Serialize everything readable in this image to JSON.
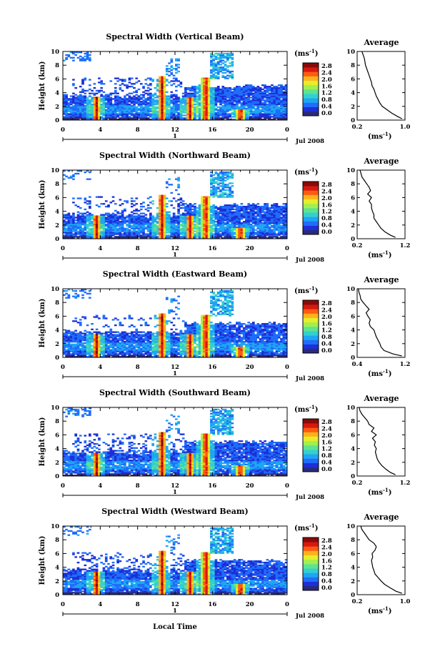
{
  "figure": {
    "xlabel": "Local Time",
    "date_label": "Jul 2008",
    "day_label": "1",
    "colorbar_unit": "(ms",
    "colorbar_unit_exp": "-1",
    "colorbar_unit_close": ")",
    "colorbar_ticks": [
      "0.0",
      "0.4",
      "0.8",
      "1.2",
      "1.6",
      "2.0",
      "2.4",
      "2.8"
    ],
    "colorbar_colors": [
      "#2a2a7a",
      "#1d2fd6",
      "#1f6dfa",
      "#1ea6f2",
      "#33d0cf",
      "#5fe38f",
      "#a3ef4e",
      "#e6ee2c",
      "#ffb21a",
      "#ff5a12",
      "#d41a10",
      "#8a0a08"
    ],
    "average_title": "Average",
    "average_unit": "(ms",
    "average_unit_exp": "-1",
    "average_unit_close": ")"
  },
  "chart_data": [
    {
      "type": "heatmap",
      "title": "Spectral Width (Vertical Beam)",
      "ylabel": "Height (km)",
      "xlim": [
        0,
        24
      ],
      "ylim": [
        0,
        10
      ],
      "x_ticks": [
        "0",
        "4",
        "8",
        "12",
        "16",
        "20",
        "0"
      ],
      "y_ticks": [
        "0",
        "2",
        "4",
        "6",
        "8",
        "10"
      ],
      "average": {
        "type": "line",
        "xlim": [
          0.2,
          1.0
        ],
        "ylim": [
          0,
          10
        ],
        "x_ticks": [
          "0.2",
          "1.0"
        ],
        "y_ticks": [
          "0",
          "2",
          "4",
          "6",
          "8",
          "10"
        ],
        "heights": [
          0.2,
          0.5,
          1,
          1.5,
          2,
          2.5,
          3,
          3.5,
          4,
          4.5,
          5,
          5.5,
          6,
          6.5,
          7,
          7.5,
          8,
          8.5,
          9,
          9.5,
          10
        ],
        "values": [
          0.95,
          0.88,
          0.78,
          0.7,
          0.62,
          0.58,
          0.55,
          0.52,
          0.5,
          0.48,
          0.45,
          0.44,
          0.42,
          0.4,
          0.38,
          0.36,
          0.34,
          0.33,
          0.32,
          0.3,
          0.28
        ]
      }
    },
    {
      "type": "heatmap",
      "title": "Spectral Width (Northward Beam)",
      "ylabel": "Height (km)",
      "xlim": [
        0,
        24
      ],
      "ylim": [
        0,
        10
      ],
      "x_ticks": [
        "0",
        "4",
        "8",
        "12",
        "16",
        "20",
        "0"
      ],
      "y_ticks": [
        "0",
        "2",
        "4",
        "6",
        "8",
        "10"
      ],
      "average": {
        "type": "line",
        "xlim": [
          0.2,
          1.2
        ],
        "ylim": [
          0,
          10
        ],
        "x_ticks": [
          "0.2",
          "1.2"
        ],
        "y_ticks": [
          "0",
          "2",
          "4",
          "6",
          "8",
          "10"
        ],
        "heights": [
          0.2,
          0.5,
          1,
          1.5,
          2,
          2.5,
          3,
          3.5,
          4,
          4.5,
          5,
          5.5,
          6,
          6.5,
          7,
          7.5,
          8,
          8.5,
          9,
          9.5,
          10
        ],
        "values": [
          1.0,
          0.9,
          0.78,
          0.7,
          0.65,
          0.6,
          0.55,
          0.55,
          0.52,
          0.5,
          0.5,
          0.45,
          0.5,
          0.42,
          0.48,
          0.45,
          0.4,
          0.35,
          0.3,
          0.28,
          0.26
        ]
      }
    },
    {
      "type": "heatmap",
      "title": "Spectral Width (Eastward Beam)",
      "ylabel": "Height (km)",
      "xlim": [
        0,
        24
      ],
      "ylim": [
        0,
        10
      ],
      "x_ticks": [
        "0",
        "4",
        "8",
        "12",
        "16",
        "20",
        "0"
      ],
      "y_ticks": [
        "0",
        "2",
        "4",
        "6",
        "8",
        "10"
      ],
      "average": {
        "type": "line",
        "xlim": [
          0.4,
          1.2
        ],
        "ylim": [
          0,
          10
        ],
        "x_ticks": [
          "0.4",
          "1.2"
        ],
        "y_ticks": [
          "0",
          "2",
          "4",
          "6",
          "8",
          "10"
        ],
        "heights": [
          0.2,
          0.5,
          1,
          1.5,
          2,
          2.5,
          3,
          3.5,
          4,
          4.5,
          5,
          5.5,
          6,
          6.5,
          7,
          7.5,
          8,
          8.5,
          9,
          9.5,
          10
        ],
        "values": [
          1.15,
          1.0,
          0.85,
          0.8,
          0.78,
          0.75,
          0.72,
          0.7,
          0.68,
          0.62,
          0.6,
          0.62,
          0.58,
          0.55,
          0.6,
          0.55,
          0.5,
          0.46,
          0.45,
          0.43,
          0.42
        ]
      }
    },
    {
      "type": "heatmap",
      "title": "Spectral Width (Southward Beam)",
      "ylabel": "Height (km)",
      "xlim": [
        0,
        24
      ],
      "ylim": [
        0,
        10
      ],
      "x_ticks": [
        "0",
        "4",
        "8",
        "12",
        "16",
        "20",
        "0"
      ],
      "y_ticks": [
        "0",
        "2",
        "4",
        "6",
        "8",
        "10"
      ],
      "average": {
        "type": "line",
        "xlim": [
          0.2,
          1.2
        ],
        "ylim": [
          0,
          10
        ],
        "x_ticks": [
          "0.2",
          "1.2"
        ],
        "y_ticks": [
          "0",
          "2",
          "4",
          "6",
          "8",
          "10"
        ],
        "heights": [
          0.2,
          0.5,
          1,
          1.5,
          2,
          2.5,
          3,
          3.5,
          4,
          4.5,
          5,
          5.5,
          6,
          6.5,
          7,
          7.5,
          8,
          8.5,
          9,
          9.5,
          10
        ],
        "values": [
          1.0,
          0.9,
          0.8,
          0.72,
          0.66,
          0.62,
          0.6,
          0.58,
          0.6,
          0.56,
          0.58,
          0.52,
          0.6,
          0.5,
          0.55,
          0.45,
          0.42,
          0.36,
          0.3,
          0.26,
          0.24
        ]
      }
    },
    {
      "type": "heatmap",
      "title": "Spectral Width (Westward Beam)",
      "ylabel": "Height (km)",
      "xlim": [
        0,
        24
      ],
      "ylim": [
        0,
        10
      ],
      "x_ticks": [
        "0",
        "4",
        "8",
        "12",
        "16",
        "20",
        "0"
      ],
      "y_ticks": [
        "0",
        "2",
        "4",
        "6",
        "8",
        "10"
      ],
      "average": {
        "type": "line",
        "xlim": [
          0.2,
          1.0
        ],
        "ylim": [
          0,
          10
        ],
        "x_ticks": [
          "0.2",
          "1.0"
        ],
        "y_ticks": [
          "0",
          "2",
          "4",
          "6",
          "8",
          "10"
        ],
        "heights": [
          0.2,
          0.5,
          1,
          1.5,
          2,
          2.5,
          3,
          3.5,
          4,
          4.5,
          5,
          5.5,
          6,
          6.5,
          7,
          7.5,
          8,
          8.5,
          9,
          9.5,
          10
        ],
        "values": [
          0.95,
          0.85,
          0.75,
          0.66,
          0.6,
          0.55,
          0.5,
          0.48,
          0.46,
          0.45,
          0.44,
          0.46,
          0.45,
          0.5,
          0.52,
          0.48,
          0.4,
          0.36,
          0.32,
          0.28,
          0.26
        ]
      }
    }
  ]
}
